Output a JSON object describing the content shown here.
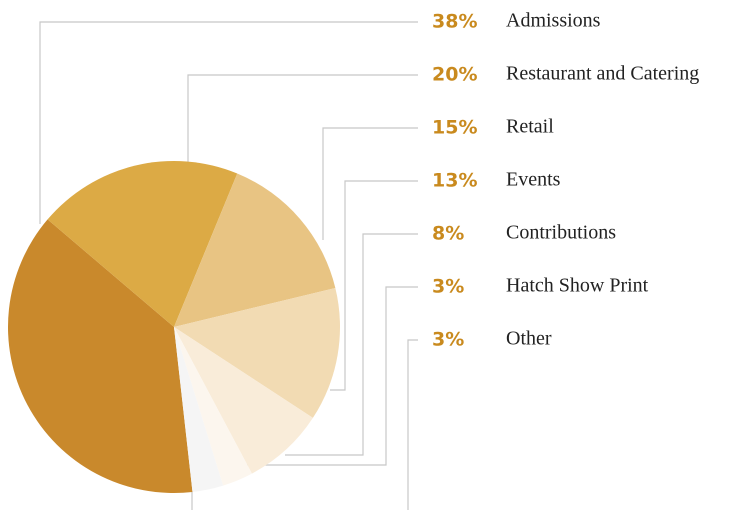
{
  "chart_data": {
    "type": "pie",
    "categories": [
      "Admissions",
      "Restaurant and Catering",
      "Retail",
      "Events",
      "Contributions",
      "Hatch Show Print",
      "Other"
    ],
    "values": [
      38,
      20,
      15,
      13,
      8,
      3,
      3
    ],
    "value_labels": [
      "38%",
      "20%",
      "15%",
      "13%",
      "8%",
      "3%",
      "3%"
    ],
    "colors": [
      "#c9892c",
      "#dcaa45",
      "#e8c483",
      "#f2dbb3",
      "#f9ecd9",
      "#fcf6ee",
      "#f5f5f5"
    ]
  }
}
